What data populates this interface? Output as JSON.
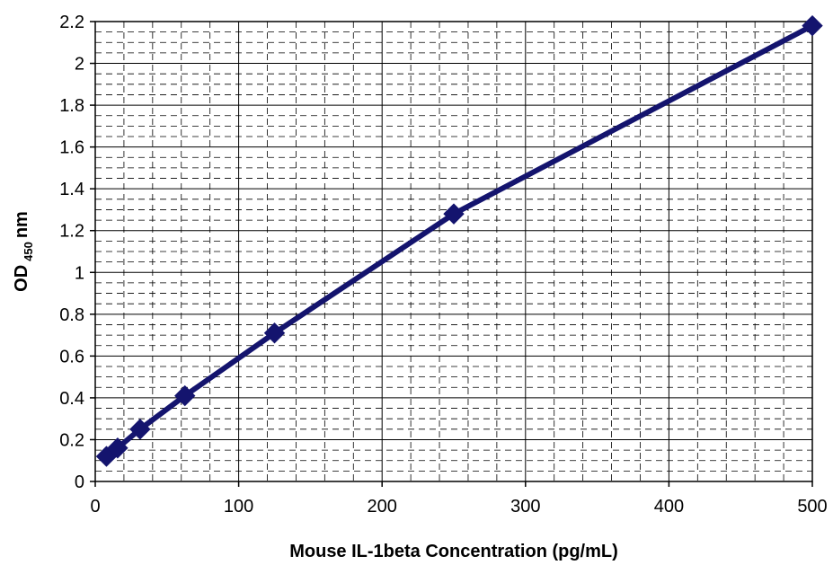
{
  "chart_data": {
    "type": "line",
    "title": "",
    "xlabel": "Mouse IL-1beta Concentration (pg/mL)",
    "ylabel": {
      "main": "OD",
      "subscript": "450",
      "suffix": "nm"
    },
    "xlim": [
      0,
      500
    ],
    "ylim": [
      0,
      2.2
    ],
    "x_ticks": [
      0,
      100,
      200,
      300,
      400,
      500
    ],
    "y_ticks": [
      0,
      0.2,
      0.4,
      0.6,
      0.8,
      1,
      1.2,
      1.4,
      1.6,
      1.8,
      2,
      2.2
    ],
    "x_tick_labels": [
      "0",
      "100",
      "200",
      "300",
      "400",
      "500"
    ],
    "y_tick_labels": [
      "0",
      "0.2",
      "0.4",
      "0.6",
      "0.8",
      "1",
      "1.2",
      "1.4",
      "1.6",
      "1.8",
      "2",
      "2.2"
    ],
    "grid": true,
    "legend": "none",
    "series": [
      {
        "color": "#14146E",
        "marker": "diamond",
        "x": [
          7.8,
          15.6,
          31.25,
          62.5,
          125,
          250,
          500
        ],
        "y": [
          0.12,
          0.16,
          0.25,
          0.41,
          0.71,
          1.28,
          2.18
        ]
      }
    ]
  }
}
